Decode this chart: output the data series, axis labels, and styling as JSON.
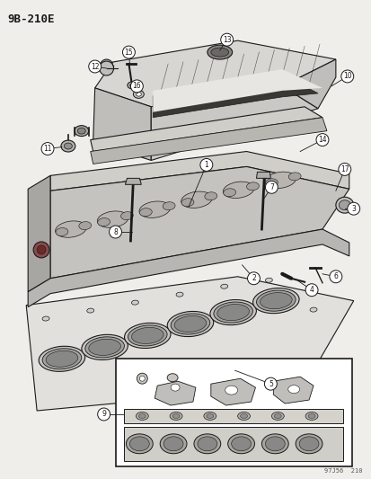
{
  "bg_color": "#f0eeea",
  "title_code": "9B-210E",
  "watermark": "97J56  210",
  "fig_w": 4.14,
  "fig_h": 5.33,
  "dpi": 100,
  "line_color": "#1a1a1a",
  "fill_cover_top": "#d8d6d2",
  "fill_cover_side": "#c0bebb",
  "fill_cover_gasket": "#c8c6c2",
  "fill_head_top": "#c5c3bf",
  "fill_head_body": "#b8b6b2",
  "fill_head_side": "#a8a6a2",
  "fill_gasket": "#e2e0dc",
  "fill_white": "#ffffff",
  "fill_part": "#b0aeaa"
}
